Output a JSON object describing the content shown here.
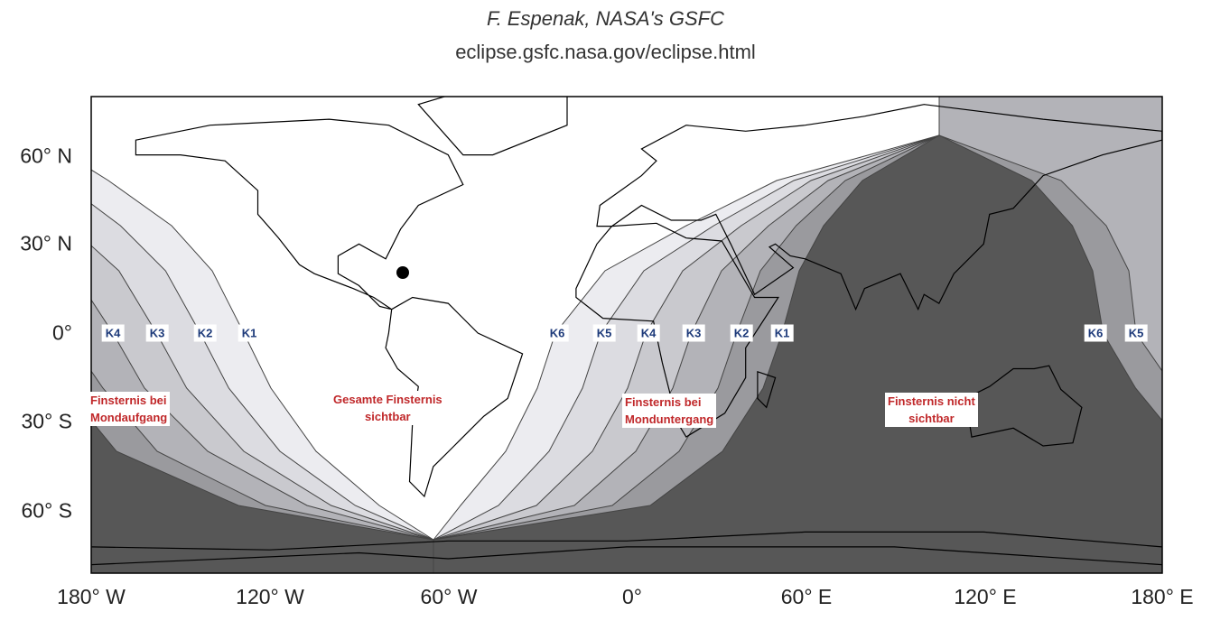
{
  "header": {
    "credit": "F. Espenak, NASA's GSFC",
    "url": "eclipse.gsfc.nasa.gov/eclipse.html"
  },
  "axes": {
    "latitude_labels": [
      "60° N",
      "30° N",
      "0°",
      "30° S",
      "60° S"
    ],
    "longitude_labels": [
      "180° W",
      "120° W",
      "60° W",
      "0°",
      "60° E",
      "120° E",
      "180° E"
    ]
  },
  "contact_labels": [
    "K4",
    "K3",
    "K2",
    "K1",
    "K6",
    "K5",
    "K4",
    "K3",
    "K2",
    "K1",
    "K6",
    "K5"
  ],
  "region_labels": [
    {
      "lines": [
        "Finsternis bei",
        "Mondaufgang"
      ]
    },
    {
      "lines": [
        "Gesamte Finsternis",
        "sichtbar"
      ]
    },
    {
      "lines": [
        "Finsternis bei",
        "Monduntergang"
      ]
    },
    {
      "lines": [
        "Finsternis nicht",
        "sichtbar"
      ]
    }
  ]
}
